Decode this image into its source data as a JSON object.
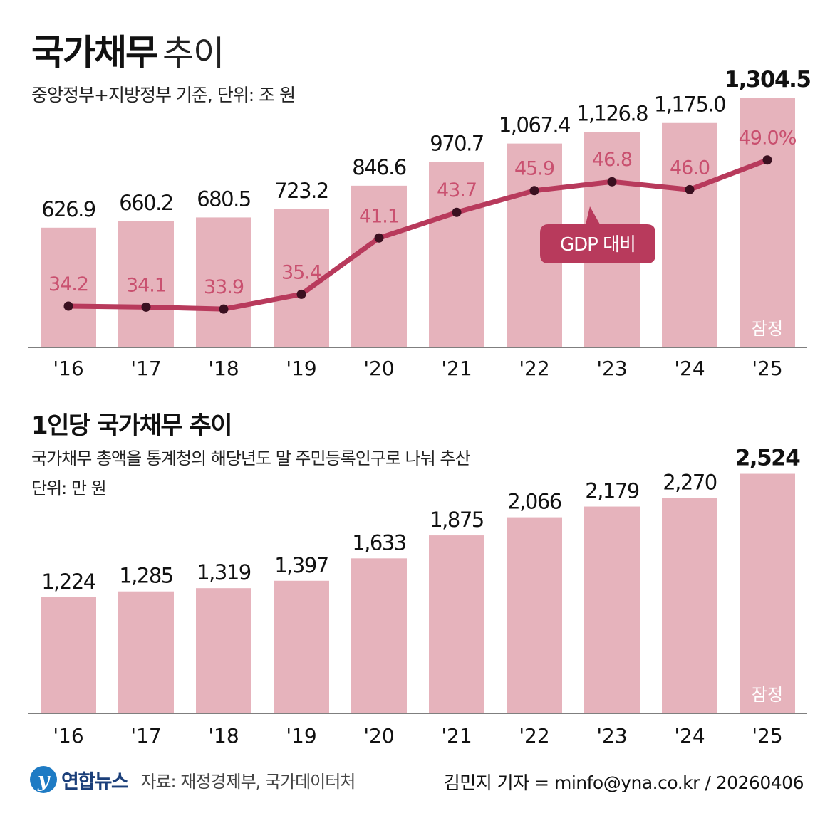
{
  "title": {
    "main": "국가채무",
    "sub": "추이",
    "subtitle": "중앙정부+지방정부 기준, 단위: 조 원"
  },
  "section2": {
    "title": "1인당 국가채무 추이",
    "note": "국가채무 총액을 통계청의 해당년도 말 주민등록인구로 나눠 추산",
    "unit": "단위: 만 원"
  },
  "colors": {
    "bar": "#e6b3bc",
    "line": "#b83a5c",
    "ratio_label": "#c9506f",
    "badge": "#b83a5c"
  },
  "chart_data": [
    {
      "type": "bar",
      "categories": [
        "'16",
        "'17",
        "'18",
        "'19",
        "'20",
        "'21",
        "'22",
        "'23",
        "'24",
        "'25"
      ],
      "values": [
        626.9,
        660.2,
        680.5,
        723.2,
        846.6,
        970.7,
        1067.4,
        1126.8,
        1175.0,
        1304.5
      ],
      "value_labels": [
        "626.9",
        "660.2",
        "680.5",
        "723.2",
        "846.6",
        "970.7",
        "1,067.4",
        "1,126.8",
        "1,175.0",
        "1,304.5"
      ],
      "highlight_index": 9,
      "provisional_label": "잠정",
      "series": [
        {
          "name": "GDP 대비",
          "type": "line",
          "values": [
            34.2,
            34.1,
            33.9,
            35.4,
            41.1,
            43.7,
            45.9,
            46.8,
            46.0,
            49.0
          ],
          "value_labels": [
            "34.2",
            "34.1",
            "33.9",
            "35.4",
            "41.1",
            "43.7",
            "45.9",
            "46.8",
            "46.0",
            "49.0%"
          ]
        }
      ],
      "callout": "GDP 대비"
    },
    {
      "type": "bar",
      "categories": [
        "'16",
        "'17",
        "'18",
        "'19",
        "'20",
        "'21",
        "'22",
        "'23",
        "'24",
        "'25"
      ],
      "values": [
        1224,
        1285,
        1319,
        1397,
        1633,
        1875,
        2066,
        2179,
        2270,
        2524
      ],
      "value_labels": [
        "1,224",
        "1,285",
        "1,319",
        "1,397",
        "1,633",
        "1,875",
        "2,066",
        "2,179",
        "2,270",
        "2,524"
      ],
      "highlight_index": 9,
      "provisional_label": "잠정"
    }
  ],
  "footer": {
    "logo_mark": "y",
    "logo_text": "연합뉴스",
    "source": "자료: 재정경제부, 국가데이터처",
    "credit": "김민지 기자 = minfo@yna.co.kr / 20260406"
  }
}
